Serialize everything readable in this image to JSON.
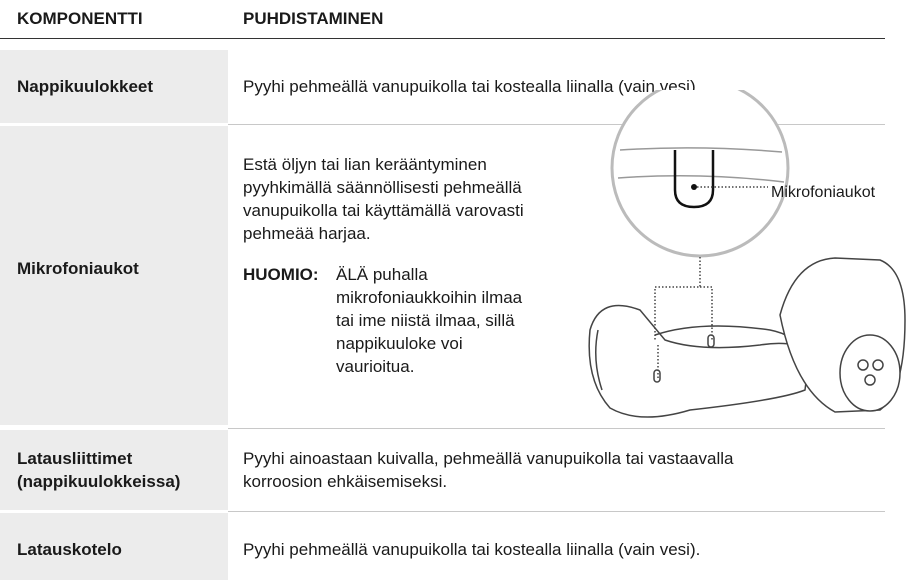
{
  "header": {
    "columns": [
      "KOMPONENTTI",
      "PUHDISTAMINEN"
    ]
  },
  "rows": [
    {
      "component": "Nappikuulokkeet",
      "cleaning": "Pyyhi pehmeällä vanupuikolla tai kostealla liinalla (vain vesi)."
    },
    {
      "component": "Mikrofoniaukot",
      "cleaning": "Estä öljyn tai lian kerääntyminen pyyhkimällä säännöllisesti pehmeällä vanupuikolla tai käyttämällä varovasti pehmeää harjaa.",
      "note_label": "HUOMIO:",
      "note": "ÄLÄ puhalla mikrofoniaukkoihin ilmaa tai ime niistä ilmaa, sillä nappikuuloke voi vaurioitua.",
      "callout": "Mikrofoniaukot"
    },
    {
      "component": "Latausliittimet (nappikuulokkeissa)",
      "cleaning": "Pyyhi ainoastaan kuivalla, pehmeällä vanupuikolla tai vastaavalla korroosion ehkäisemiseksi."
    },
    {
      "component": "Latauskotelo",
      "cleaning": "Pyyhi pehmeällä vanupuikolla tai kostealla liinalla (vain vesi)."
    }
  ]
}
